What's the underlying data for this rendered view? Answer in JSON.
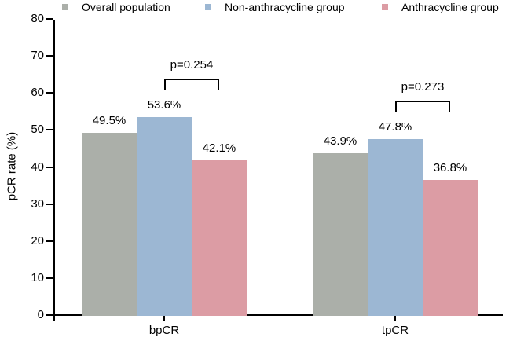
{
  "chart_data": {
    "type": "bar",
    "categories": [
      "bpCR",
      "tpCR"
    ],
    "series": [
      {
        "name": "Overall population",
        "color": "#abafa9",
        "values": [
          49.5,
          43.9
        ]
      },
      {
        "name": "Non-anthracycline group",
        "color": "#9cb7d3",
        "values": [
          53.6,
          47.8
        ]
      },
      {
        "name": "Anthracycline group",
        "color": "#dc9ca4",
        "values": [
          42.1,
          36.8
        ]
      }
    ],
    "value_labels": [
      [
        "49.5%",
        "53.6%",
        "42.1%"
      ],
      [
        "43.9%",
        "47.8%",
        "36.8%"
      ]
    ],
    "annotations": [
      {
        "category": "bpCR",
        "label": "p=0.254",
        "between_series": [
          1,
          2
        ]
      },
      {
        "category": "tpCR",
        "label": "p=0.273",
        "between_series": [
          1,
          2
        ]
      }
    ],
    "title": "",
    "xlabel": "",
    "ylabel": "pCR rate (%)",
    "ylim": [
      0,
      80
    ],
    "yticks": [
      0,
      10,
      20,
      30,
      40,
      50,
      60,
      70,
      80
    ],
    "grid": false,
    "legend_position": "top",
    "axis_color": "#000000"
  }
}
